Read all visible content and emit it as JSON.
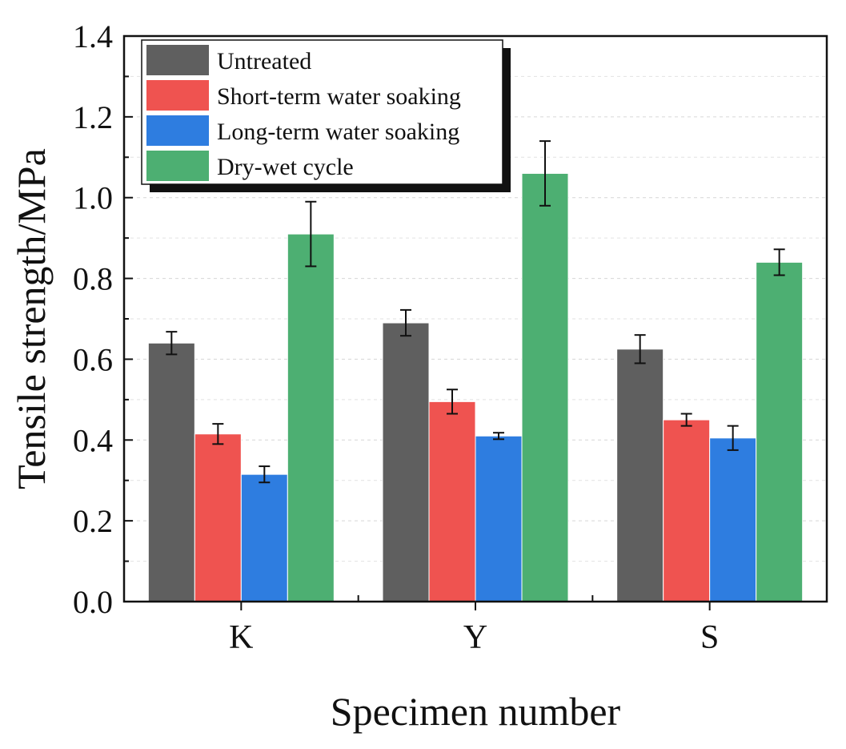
{
  "chart_data": {
    "type": "bar",
    "xlabel": "Specimen number",
    "ylabel": "Tensile strength/MPa",
    "categories": [
      "K",
      "Y",
      "S"
    ],
    "ylim": [
      0.0,
      1.4
    ],
    "yticks": [
      "0.0",
      "0.2",
      "0.4",
      "0.6",
      "0.8",
      "1.0",
      "1.2",
      "1.4"
    ],
    "grid": "horizontal-dashed",
    "legend_position": "top-left",
    "series": [
      {
        "name": "Untreated",
        "color": "#5f5f5f",
        "values": [
          0.64,
          0.69,
          0.625
        ],
        "errors": [
          0.028,
          0.032,
          0.035
        ]
      },
      {
        "name": "Short-term water soaking",
        "color": "#ef5350",
        "values": [
          0.415,
          0.495,
          0.45
        ],
        "errors": [
          0.025,
          0.03,
          0.015
        ]
      },
      {
        "name": "Long-term water soaking",
        "color": "#2e7de0",
        "values": [
          0.315,
          0.41,
          0.405
        ],
        "errors": [
          0.02,
          0.008,
          0.03
        ]
      },
      {
        "name": "Dry-wet cycle",
        "color": "#4daf72",
        "values": [
          0.91,
          1.06,
          0.84
        ],
        "errors": [
          0.08,
          0.08,
          0.032
        ]
      }
    ]
  }
}
